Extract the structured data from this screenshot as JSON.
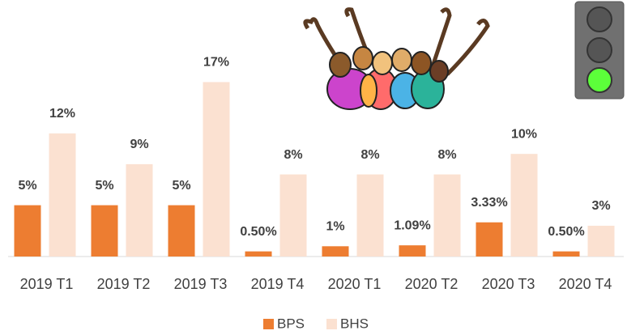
{
  "chart_data": {
    "type": "bar",
    "categories": [
      "2019 T1",
      "2019 T2",
      "2019 T3",
      "2019 T4",
      "2020 T1",
      "2020 T2",
      "2020 T3",
      "2020 T4"
    ],
    "series": [
      {
        "name": "BPS",
        "color": "#ed7d31",
        "values": [
          5,
          5,
          5,
          0.5,
          1,
          1.09,
          3.33,
          0.5
        ],
        "value_labels": [
          "5%",
          "5%",
          "5%",
          "0.50%",
          "1%",
          "1.09%",
          "3.33%",
          "0.50%"
        ]
      },
      {
        "name": "BHS",
        "color": "#fbe1d1",
        "values": [
          12,
          9,
          17,
          8,
          8,
          8,
          10,
          3
        ],
        "value_labels": [
          "12%",
          "9%",
          "17%",
          "8%",
          "8%",
          "8%",
          "10%",
          "3%"
        ]
      }
    ],
    "ylim": [
      0,
      25
    ],
    "grid": false
  }
}
